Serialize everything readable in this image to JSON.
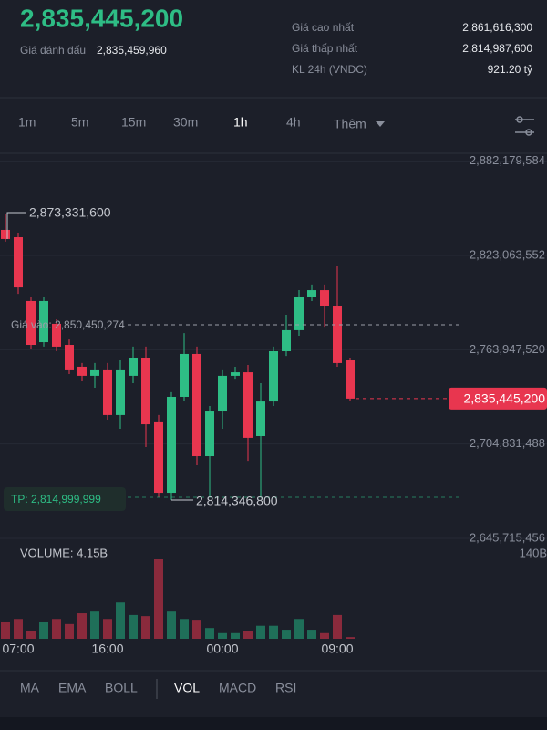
{
  "header": {
    "price": "2,835,445,200",
    "mark_label": "Giá đánh dấu",
    "mark_price": "2,835,459,960",
    "stats": [
      {
        "label": "Giá cao nhất",
        "value": "2,861,616,300"
      },
      {
        "label": "Giá thấp nhất",
        "value": "2,814,987,600"
      },
      {
        "label": "KL 24h (VNDC)",
        "value": "921.20 tỷ"
      }
    ]
  },
  "timeframes": {
    "items": [
      "1m",
      "5m",
      "15m",
      "30m",
      "1h",
      "4h"
    ],
    "more": "Thêm",
    "active": "1h"
  },
  "indicators": {
    "main": [
      "MA",
      "EMA",
      "BOLL"
    ],
    "sub": [
      "VOL",
      "MACD",
      "RSI"
    ],
    "active": "VOL"
  },
  "chart_data": {
    "type": "candlestick",
    "categories": [
      null,
      "07:00",
      null,
      null,
      null,
      null,
      null,
      null,
      "16:00",
      null,
      null,
      null,
      null,
      null,
      null,
      null,
      null,
      "00:00",
      null,
      null,
      null,
      null,
      null,
      null,
      null,
      null,
      "09:00",
      null
    ],
    "open": [
      2839100000,
      2834500000,
      2794500000,
      2768700000,
      2780200000,
      2767000000,
      2753300000,
      2747600000,
      2751600000,
      2723000000,
      2747600000,
      2759000000,
      2719000000,
      2674300000,
      2734400000,
      2761300000,
      2697200000,
      2725800000,
      2747600000,
      2749800000,
      2709800000,
      2731500000,
      2763000000,
      2776200000,
      2797300000,
      2801300000,
      2791600000,
      2757300000
    ],
    "high": [
      2848800000,
      2837400000,
      2797300000,
      2797300000,
      2783000000,
      2770400000,
      2755600000,
      2755600000,
      2755600000,
      2757300000,
      2765900000,
      2765900000,
      2723000000,
      2737300000,
      2774400000,
      2765900000,
      2728700000,
      2751600000,
      2753300000,
      2754400000,
      2743000000,
      2765900000,
      2785900000,
      2801300000,
      2804800000,
      2804800000,
      2816200000,
      2759000000
    ],
    "low": [
      2831700000,
      2799000000,
      2764700000,
      2765900000,
      2763000000,
      2748700000,
      2744100000,
      2740100000,
      2720100000,
      2714400000,
      2743000000,
      2702900000,
      2671500000,
      2669800000,
      2731500000,
      2691500000,
      2671500000,
      2714400000,
      2745800000,
      2694300000,
      2671500000,
      2728700000,
      2760100000,
      2772700000,
      2794500000,
      2778400000,
      2753300000,
      2731500000
    ],
    "close": [
      2833400000,
      2803000000,
      2767000000,
      2794500000,
      2765900000,
      2751600000,
      2747600000,
      2751600000,
      2723000000,
      2751600000,
      2759000000,
      2717200000,
      2674300000,
      2734400000,
      2761300000,
      2697200000,
      2725800000,
      2747600000,
      2749800000,
      2708700000,
      2731500000,
      2763000000,
      2776200000,
      2797300000,
      2801300000,
      2791600000,
      2755600000,
      2733300000
    ],
    "up_color": "#2ebd85",
    "down_color": "#e8364f",
    "ylim": [
      2640000000,
      2886000000
    ],
    "yticks": [
      {
        "value": 2645715456,
        "label": "2,645,715,456"
      },
      {
        "value": 2704831488,
        "label": "2,704,831,488"
      },
      {
        "value": 2763947520,
        "label": "2,763,947,520"
      },
      {
        "value": 2823063552,
        "label": "2,823,063,552"
      },
      {
        "value": 2882179584,
        "label": "2,882,179,584"
      }
    ],
    "grid": true,
    "annotations": {
      "high_label": "2,873,331,600",
      "entry_label": "Giá vào: 2,850,450,274",
      "price_label": "2,835,445,200",
      "tp_label": "TP: 2,814,999,999",
      "low_label": "2,814,346,800"
    },
    "volume": {
      "label": "VOLUME: 4.15B",
      "values": [
        29,
        35,
        13,
        29,
        35,
        26,
        45,
        48,
        35,
        64,
        42,
        40,
        140,
        48,
        35,
        32,
        19,
        10,
        10,
        13,
        23,
        23,
        16,
        35,
        16,
        10,
        42,
        3
      ],
      "ylim": [
        0,
        140
      ],
      "yticks": [
        {
          "value": 140,
          "label": "140B"
        }
      ]
    }
  }
}
